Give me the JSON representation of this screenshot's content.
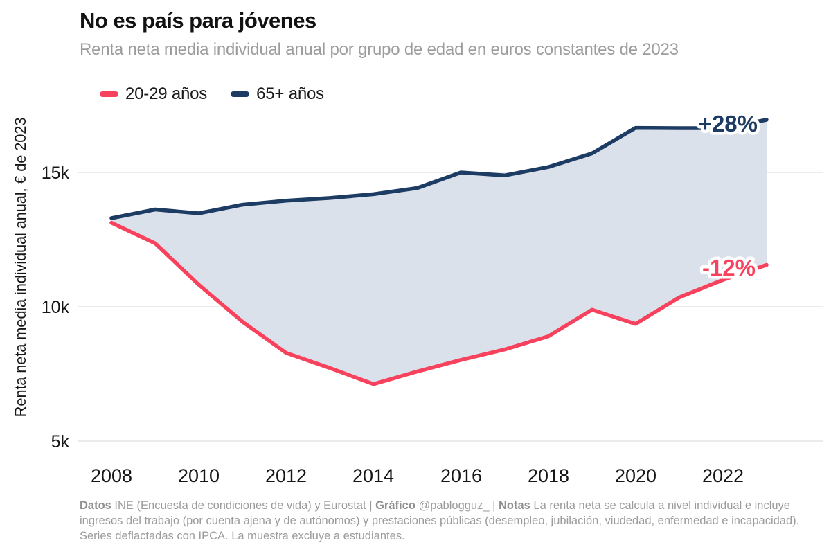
{
  "header": {
    "title": "No es país para jóvenes",
    "subtitle": "Renta neta media individual anual por grupo de edad en euros constantes de 2023"
  },
  "colors": {
    "young_line": "#f8415c",
    "old_line": "#1d3c63",
    "band_fill": "#dbe1ea",
    "gridline": "#ebebeb",
    "subtitle_text": "#9c9c9c",
    "footer_text": "#9b9b9b"
  },
  "chart_data": {
    "type": "line",
    "title": "No es país para jóvenes",
    "subtitle": "Renta neta media individual anual por grupo de edad en euros constantes de 2023",
    "ylabel": "Renta neta media individual anual, € de 2023",
    "xlabel": "",
    "x": [
      2008,
      2009,
      2010,
      2011,
      2012,
      2013,
      2014,
      2015,
      2016,
      2017,
      2018,
      2019,
      2020,
      2021,
      2022,
      2023
    ],
    "series": [
      {
        "name": "20-29 años",
        "color": "#f8415c",
        "end_label": "-12%",
        "values": [
          13130,
          12360,
          10820,
          9440,
          8280,
          7720,
          7120,
          7590,
          8020,
          8410,
          8900,
          9890,
          9360,
          10350,
          11000,
          11560
        ]
      },
      {
        "name": "65+ años",
        "color": "#1d3c63",
        "end_label": "+28%",
        "values": [
          13300,
          13620,
          13480,
          13800,
          13950,
          14050,
          14190,
          14420,
          15000,
          14890,
          15200,
          15710,
          16660,
          16650,
          16650,
          16960
        ]
      }
    ],
    "band_between_series": true,
    "ylim": [
      4500,
      17500
    ],
    "yticks": [
      {
        "value": 15000,
        "label": "15k"
      },
      {
        "value": 10000,
        "label": "10k"
      },
      {
        "value": 5000,
        "label": "5k"
      }
    ],
    "xticks": [
      {
        "value": 2008,
        "label": "2008"
      },
      {
        "value": 2010,
        "label": "2010"
      },
      {
        "value": 2012,
        "label": "2012"
      },
      {
        "value": 2014,
        "label": "2014"
      },
      {
        "value": 2016,
        "label": "2016"
      },
      {
        "value": 2018,
        "label": "2018"
      },
      {
        "value": 2020,
        "label": "2020"
      },
      {
        "value": 2022,
        "label": "2022"
      }
    ],
    "grid": "horizontal",
    "legend_position": "top-left"
  },
  "footer": {
    "datos_label": "Datos",
    "datos_text": " INE (Encuesta de condiciones de vida) y Eurostat | ",
    "grafico_label": "Gráfico",
    "grafico_text": " @pablogguz_ | ",
    "notas_label": "Notas",
    "notas_text": " La renta neta se calcula a nivel individual e incluye ingresos del trabajo (por cuenta ajena y de autónomos) y prestaciones públicas (desempleo, jubilación, viudedad, enfermedad e incapacidad). Series deflactadas con IPCA. La muestra excluye a estudiantes."
  }
}
